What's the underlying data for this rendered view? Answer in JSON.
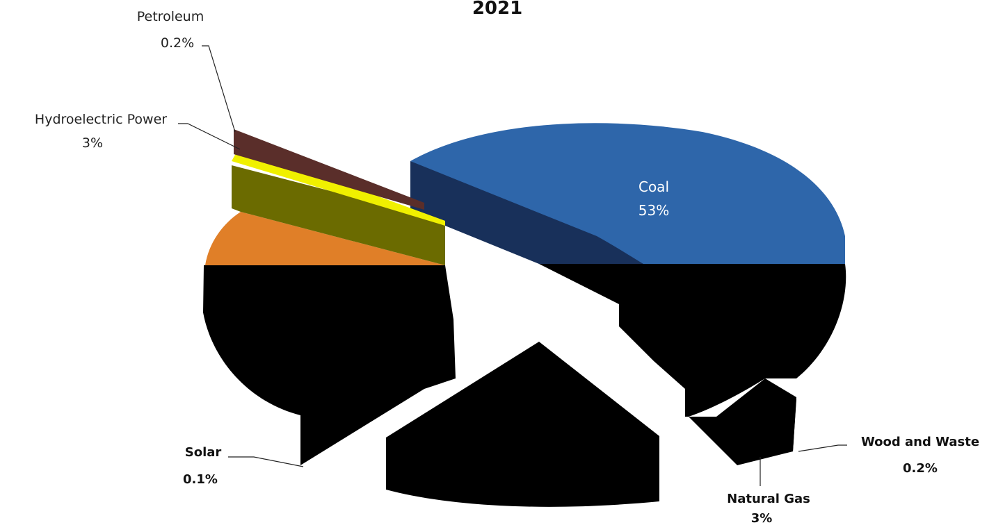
{
  "chart_data": {
    "type": "pie",
    "title": "2021",
    "slices": [
      {
        "label": "Coal",
        "value_label": "53%",
        "value": 53,
        "color": "#2e66aa"
      },
      {
        "label": "Wood and Waste",
        "value_label": "0.2%",
        "value": 0.2,
        "color": "#000000"
      },
      {
        "label": "Natural Gas",
        "value_label": "3%",
        "value": 3,
        "color": "#000000"
      },
      {
        "label": "Solar",
        "value_label": "0.1%",
        "value": 0.1,
        "color": "#000000"
      },
      {
        "label": "Hydroelectric Power",
        "value_label": "3%",
        "value": 3,
        "color": "#f0f000"
      },
      {
        "label": "Petroleum",
        "value_label": "0.2%",
        "value": 0.2,
        "color": "#5a2e2a"
      }
    ],
    "extra_colors": {
      "olive": "#6b6b00",
      "orange": "#e07f28"
    }
  },
  "labels": {
    "title": "2021",
    "coal": "Coal",
    "coal_pct": "53%",
    "petroleum": "Petroleum",
    "petroleum_pct": "0.2%",
    "hydro": "Hydroelectric Power",
    "hydro_pct": "3%",
    "solar": "Solar",
    "solar_pct": "0.1%",
    "natgas": "Natural Gas",
    "natgas_pct": "3%",
    "wood": "Wood and Waste",
    "wood_pct": "0.2%"
  }
}
